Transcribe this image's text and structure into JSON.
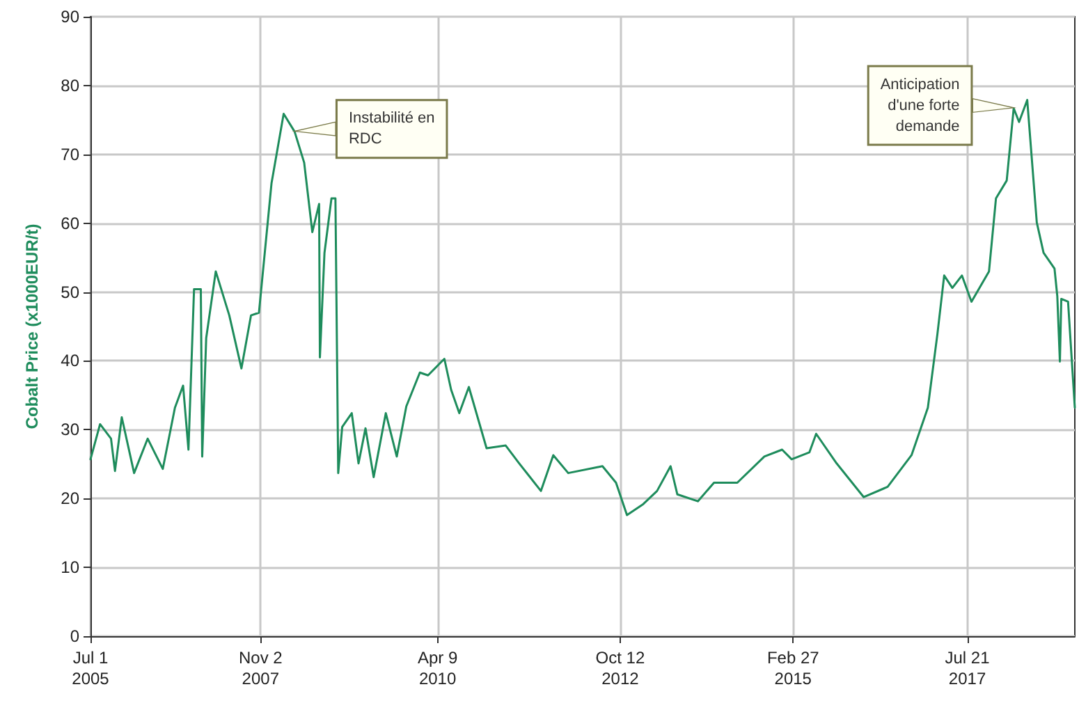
{
  "chart_data": {
    "type": "line",
    "ylabel": "Cobalt Price (x1000EUR/t)",
    "x": [
      "2005-07-01",
      "2005-08-18",
      "2005-10-12",
      "2005-11-01",
      "2005-12-05",
      "2006-02-05",
      "2006-04-14",
      "2006-06-29",
      "2006-08-29",
      "2006-10-09",
      "2006-11-05",
      "2006-12-03",
      "2007-01-06",
      "2007-01-13",
      "2007-02-02",
      "2007-03-22",
      "2007-05-29",
      "2007-07-29",
      "2007-09-15",
      "2007-10-25",
      "2007-12-27",
      "2008-02-26",
      "2008-04-21",
      "2008-06-08",
      "2008-07-19",
      "2008-08-22",
      "2008-08-26",
      "2008-09-18",
      "2008-10-23",
      "2008-11-12",
      "2008-11-26",
      "2008-12-16",
      "2009-02-02",
      "2009-03-08",
      "2009-04-12",
      "2009-05-23",
      "2009-07-23",
      "2009-09-16",
      "2009-11-03",
      "2010-01-10",
      "2010-02-20",
      "2010-05-13",
      "2010-06-16",
      "2010-07-27",
      "2010-09-13",
      "2010-12-11",
      "2011-03-17",
      "2011-05-24",
      "2011-09-10",
      "2011-11-11",
      "2012-01-25",
      "2012-07-15",
      "2012-09-21",
      "2012-11-15",
      "2013-02-05",
      "2013-04-15",
      "2013-06-22",
      "2013-07-26",
      "2013-11-06",
      "2014-01-26",
      "2014-05-23",
      "2014-10-06",
      "2015-01-03",
      "2015-02-20",
      "2015-05-20",
      "2015-06-23",
      "2015-10-04",
      "2016-02-17",
      "2016-06-16",
      "2016-10-14",
      "2017-01-04",
      "2017-02-21",
      "2017-03-27",
      "2017-05-07",
      "2017-06-24",
      "2017-08-11",
      "2017-11-07",
      "2017-12-12",
      "2018-02-04",
      "2018-03-11",
      "2018-04-07",
      "2018-05-18",
      "2018-07-05",
      "2018-08-08",
      "2018-10-02",
      "2018-10-16",
      "2018-10-29",
      "2018-11-05",
      "2018-12-09",
      "2019-01-12"
    ],
    "series": [
      {
        "color": "#1e8c5c",
        "values": [
          25.7,
          30.8,
          28.7,
          24,
          31.8,
          23.7,
          28.7,
          24.3,
          33.2,
          36.4,
          27.1,
          50.4,
          50.4,
          26.1,
          43.3,
          53,
          46.6,
          38.9,
          46.6,
          47,
          65.8,
          75.9,
          73.3,
          68.8,
          58.7,
          62.8,
          40.5,
          55.7,
          63.6,
          63.6,
          23.7,
          30.4,
          32.4,
          25.1,
          30.2,
          23.1,
          32.4,
          26.1,
          33.4,
          38.3,
          37.9,
          40.3,
          35.8,
          32.4,
          36.2,
          27.3,
          27.7,
          25.1,
          21.1,
          26.3,
          23.7,
          24.7,
          22.3,
          17.6,
          19.2,
          21.1,
          24.7,
          20.6,
          19.6,
          22.3,
          22.3,
          26.1,
          27.1,
          25.7,
          26.7,
          29.4,
          25.1,
          20.2,
          21.7,
          26.3,
          33.2,
          43.9,
          52.4,
          50.6,
          52.4,
          48.6,
          53,
          63.6,
          66.2,
          76.7,
          74.7,
          77.9,
          60.1,
          55.7,
          53.4,
          49.4,
          39.9,
          49,
          48.6,
          33.2
        ]
      }
    ],
    "xlim": [
      "2005-07-01",
      "2019-01-12"
    ],
    "xticks": [
      {
        "value": "2005-07-01",
        "label": "Jul 1\n2005"
      },
      {
        "value": "2007-11-02",
        "label": "Nov 2\n2007"
      },
      {
        "value": "2010-04-09",
        "label": "Apr 9\n2010"
      },
      {
        "value": "2012-10-12",
        "label": "Oct 12\n2012"
      },
      {
        "value": "2015-02-27",
        "label": "Feb 27\n2015"
      },
      {
        "value": "2017-07-21",
        "label": "Jul 21\n2017"
      }
    ],
    "ylim": [
      0,
      90
    ],
    "yticks": [
      0,
      10,
      20,
      30,
      40,
      50,
      60,
      70,
      80,
      90
    ],
    "grid": true,
    "marker": "none",
    "line_style": "solid",
    "annotations": [
      {
        "text": "Instabilité en\nRDC",
        "x": "2008-04-21",
        "y": 73.3
      },
      {
        "text": "Anticipation\nd'une forte\ndemande",
        "x": "2018-03-11",
        "y": 76.7
      }
    ]
  }
}
